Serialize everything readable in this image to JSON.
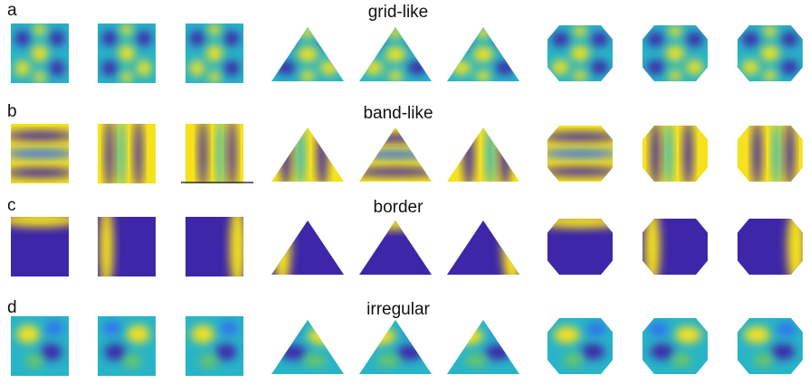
{
  "rows": [
    {
      "label": "a",
      "title": "grid-like"
    },
    {
      "label": "b",
      "title": "band-like"
    },
    {
      "label": "c",
      "title": "border"
    },
    {
      "label": "d",
      "title": "irregular"
    }
  ]
}
